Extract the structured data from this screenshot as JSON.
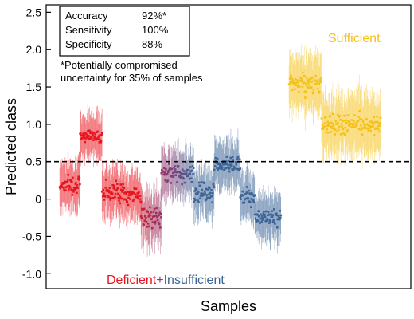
{
  "chart_data": {
    "type": "scatter",
    "xlabel": "Samples",
    "ylabel": "Predicted class",
    "ylim": [
      -1.2,
      2.6
    ],
    "yticks": [
      -1.0,
      -0.5,
      0,
      0.5,
      1.0,
      1.5,
      2.0,
      2.5
    ],
    "ytick_labels": [
      "-1.0",
      "-0.5",
      "0",
      "0.5",
      "1.0",
      "1.5",
      "2.0",
      "2.5"
    ],
    "threshold": 0.5,
    "stats_box": {
      "rows": [
        {
          "label": "Accuracy",
          "value": "92%*"
        },
        {
          "label": "Sensitivity",
          "value": "100%"
        },
        {
          "label": "Specificity",
          "value": "88%"
        }
      ],
      "note_line1": "*Potentially compromised",
      "note_line2": "uncertainty for 35% of samples"
    },
    "group_labels": {
      "deficient": "Deficient",
      "plus": "+",
      "insufficient": "Insufficient",
      "sufficient": "Sufficient"
    },
    "colors": {
      "deficient": "#e8141e",
      "deficient_dark": "#c0233c",
      "mid": "#8a3a72",
      "insufficient": "#3c6496",
      "sufficient": "#f5c21b"
    },
    "series": [
      {
        "group": "deficient",
        "segments": [
          {
            "x_start": 0,
            "x_end": 25,
            "y_mean": 0.2,
            "spread": 0.18,
            "err": 0.3
          },
          {
            "x_start": 25,
            "x_end": 52,
            "y_mean": 0.85,
            "spread": 0.12,
            "err": 0.28
          },
          {
            "x_start": 52,
            "x_end": 78,
            "y_mean": 0.1,
            "spread": 0.2,
            "err": 0.32
          },
          {
            "x_start": 78,
            "x_end": 100,
            "y_mean": 0.05,
            "spread": 0.2,
            "err": 0.3
          }
        ]
      },
      {
        "group": "mid",
        "segments": [
          {
            "x_start": 100,
            "x_end": 125,
            "y_mean": -0.25,
            "spread": 0.2,
            "err": 0.32
          },
          {
            "x_start": 125,
            "x_end": 165,
            "y_mean": 0.35,
            "spread": 0.18,
            "err": 0.3
          }
        ]
      },
      {
        "group": "insufficient",
        "segments": [
          {
            "x_start": 165,
            "x_end": 190,
            "y_mean": 0.1,
            "spread": 0.2,
            "err": 0.3
          },
          {
            "x_start": 190,
            "x_end": 222,
            "y_mean": 0.45,
            "spread": 0.18,
            "err": 0.3
          },
          {
            "x_start": 222,
            "x_end": 240,
            "y_mean": 0.05,
            "spread": 0.18,
            "err": 0.3
          },
          {
            "x_start": 240,
            "x_end": 272,
            "y_mean": -0.25,
            "spread": 0.15,
            "err": 0.3
          }
        ]
      },
      {
        "group": "sufficient",
        "segments": [
          {
            "x_start": 282,
            "x_end": 322,
            "y_mean": 1.55,
            "spread": 0.22,
            "err": 0.35
          },
          {
            "x_start": 322,
            "x_end": 395,
            "y_mean": 1.0,
            "spread": 0.2,
            "err": 0.38
          }
        ]
      }
    ],
    "x_domain": [
      -5,
      420
    ]
  }
}
